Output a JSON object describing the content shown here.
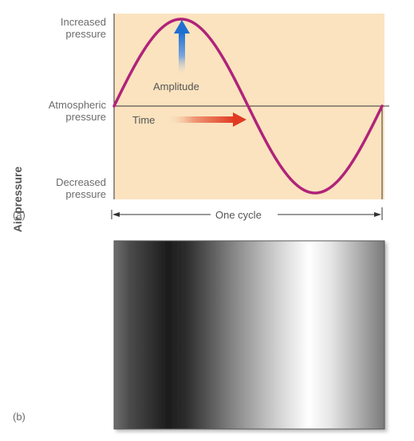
{
  "panel_a": {
    "label": "(a)",
    "y_axis_title": "Air pressure",
    "levels": {
      "increased": [
        "Increased",
        "pressure"
      ],
      "atmospheric": [
        "Atmospheric",
        "pressure"
      ],
      "decreased": [
        "Decreased",
        "pressure"
      ]
    },
    "amplitude_label": "Amplitude",
    "time_label": "Time",
    "cycle_label": "One cycle"
  },
  "panel_b": {
    "label": "(b)"
  },
  "colors": {
    "background": "#fbe3bf",
    "wave": "#b0237a",
    "atmospheric_line": "#333333",
    "amplitude_arrow_top": "#1f6fd1",
    "time_arrow": "#e03a22",
    "label_text": "#6b6b6b"
  }
}
